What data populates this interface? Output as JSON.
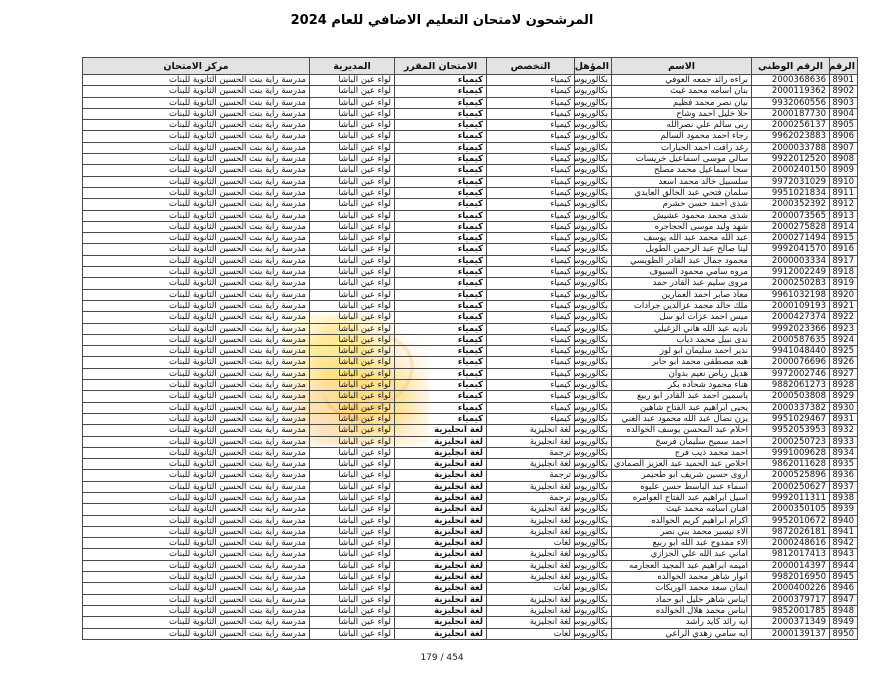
{
  "page": {
    "title": "المرشحون لامتحان التعليم الاضافي للعام 2024",
    "footer_page_indicator": "179 / 454"
  },
  "colors": {
    "header_bg": "#e3e3e3",
    "border": "#4a4a4a",
    "watermark_yellow": "#ffd84a",
    "watermark_orange": "#f59a23"
  },
  "table": {
    "headers": [
      "الرقم",
      "الرقم الوطني",
      "الاسم",
      "المؤهل",
      "التخصص",
      "الامتحان المقرر",
      "المديرية",
      "مركز الامتحان"
    ],
    "rows": [
      {
        "seq": "8901",
        "national_id": "2000368636",
        "name": "براءه رائد جمعه العوفي",
        "qualification": "بكالوريوس",
        "specialization": "كيمياء",
        "exam": "كيمياء",
        "directorate": "لواء عين الباشا",
        "center": "مدرسة راية بنت الحسين الثانوية للبنات"
      },
      {
        "seq": "8902",
        "national_id": "2000119362",
        "name": "بنان اسامه محمد غيث",
        "qualification": "بكالوريوس",
        "specialization": "كيمياء",
        "exam": "كيمياء",
        "directorate": "لواء عين الباشا",
        "center": "مدرسة راية بنت الحسين الثانوية للبنات"
      },
      {
        "seq": "8903",
        "national_id": "9932060556",
        "name": "بيان نصر محمد فظيم",
        "qualification": "بكالوريوس",
        "specialization": "كيمياء",
        "exam": "كيمياء",
        "directorate": "لواء عين الباشا",
        "center": "مدرسة راية بنت الحسين الثانوية للبنات"
      },
      {
        "seq": "8904",
        "national_id": "2000187730",
        "name": "حلا خليل احمد وشاح",
        "qualification": "بكالوريوس",
        "specialization": "كيمياء",
        "exam": "كيمياء",
        "directorate": "لواء عين الباشا",
        "center": "مدرسة راية بنت الحسين الثانوية للبنات"
      },
      {
        "seq": "8905",
        "national_id": "2000256137",
        "name": "ربى سالم علي نصرالله",
        "qualification": "بكالوريوس",
        "specialization": "كيمياء",
        "exam": "كيمياء",
        "directorate": "لواء عين الباشا",
        "center": "مدرسة راية بنت الحسين الثانوية للبنات"
      },
      {
        "seq": "8906",
        "national_id": "9962023883",
        "name": "رجاء احمد محمود السالم",
        "qualification": "بكالوريوس",
        "specialization": "كيمياء",
        "exam": "كيمياء",
        "directorate": "لواء عين الباشا",
        "center": "مدرسة راية بنت الحسين الثانوية للبنات"
      },
      {
        "seq": "8907",
        "national_id": "2000033788",
        "name": "رغد رافت احمد الجبارات",
        "qualification": "بكالوريوس",
        "specialization": "كيمياء",
        "exam": "كيمياء",
        "directorate": "لواء عين الباشا",
        "center": "مدرسة راية بنت الحسين الثانوية للبنات"
      },
      {
        "seq": "8908",
        "national_id": "9922012520",
        "name": "سالي موسى اسماعيل خريسات",
        "qualification": "بكالوريوس",
        "specialization": "كيمياء",
        "exam": "كيمياء",
        "directorate": "لواء عين الباشا",
        "center": "مدرسة راية بنت الحسين الثانوية للبنات"
      },
      {
        "seq": "8909",
        "national_id": "2000240150",
        "name": "سجا اسماعيل محمد مصلح",
        "qualification": "بكالوريوس",
        "specialization": "كيمياء",
        "exam": "كيمياء",
        "directorate": "لواء عين الباشا",
        "center": "مدرسة راية بنت الحسين الثانوية للبنات"
      },
      {
        "seq": "8910",
        "national_id": "9972031029",
        "name": "سلسبيل خالد محمد اسعد",
        "qualification": "بكالوريوس",
        "specialization": "كيمياء",
        "exam": "كيمياء",
        "directorate": "لواء عين الباشا",
        "center": "مدرسة راية بنت الحسين الثانوية للبنات"
      },
      {
        "seq": "8911",
        "national_id": "9951021834",
        "name": "سلمان فتحي عبد الخالق العايدي",
        "qualification": "بكالوريوس",
        "specialization": "كيمياء",
        "exam": "كيمياء",
        "directorate": "لواء عين الباشا",
        "center": "مدرسة راية بنت الحسين الثانوية للبنات"
      },
      {
        "seq": "8912",
        "national_id": "2000352392",
        "name": "شذى احمد حسن خشرم",
        "qualification": "بكالوريوس",
        "specialization": "كيمياء",
        "exam": "كيمياء",
        "directorate": "لواء عين الباشا",
        "center": "مدرسة راية بنت الحسين الثانوية للبنات"
      },
      {
        "seq": "8913",
        "national_id": "2000073565",
        "name": "شذى محمد محمود عشيش",
        "qualification": "بكالوريوس",
        "specialization": "كيمياء",
        "exam": "كيمياء",
        "directorate": "لواء عين الباشا",
        "center": "مدرسة راية بنت الحسين الثانوية للبنات"
      },
      {
        "seq": "8914",
        "national_id": "2000275828",
        "name": "شهد وليد موسى الحجاجره",
        "qualification": "بكالوريوس",
        "specialization": "كيمياء",
        "exam": "كيمياء",
        "directorate": "لواء عين الباشا",
        "center": "مدرسة راية بنت الحسين الثانوية للبنات"
      },
      {
        "seq": "8915",
        "national_id": "2000271494",
        "name": "عبد الله محمد عبد الله يوسف",
        "qualification": "بكالوريوس",
        "specialization": "كيمياء",
        "exam": "كيمياء",
        "directorate": "لواء عين الباشا",
        "center": "مدرسة راية بنت الحسين الثانوية للبنات"
      },
      {
        "seq": "8916",
        "national_id": "9992041570",
        "name": "لينا صالح عبد الرحمن الطويل",
        "qualification": "بكالوريوس",
        "specialization": "كيمياء",
        "exam": "كيمياء",
        "directorate": "لواء عين الباشا",
        "center": "مدرسة راية بنت الحسين الثانوية للبنات"
      },
      {
        "seq": "8917",
        "national_id": "2000003334",
        "name": "محمود جمال عبد القادر الطويسي",
        "qualification": "بكالوريوس",
        "specialization": "كيمياء",
        "exam": "كيمياء",
        "directorate": "لواء عين الباشا",
        "center": "مدرسة راية بنت الحسين الثانوية للبنات"
      },
      {
        "seq": "8918",
        "national_id": "9912002249",
        "name": "مروه سامي محمود السيوف",
        "qualification": "بكالوريوس",
        "specialization": "كيمياء",
        "exam": "كيمياء",
        "directorate": "لواء عين الباشا",
        "center": "مدرسة راية بنت الحسين الثانوية للبنات"
      },
      {
        "seq": "8919",
        "national_id": "2000250283",
        "name": "مروى سليم عبد القادر حمد",
        "qualification": "بكالوريوس",
        "specialization": "كيمياء",
        "exam": "كيمياء",
        "directorate": "لواء عين الباشا",
        "center": "مدرسة راية بنت الحسين الثانوية للبنات"
      },
      {
        "seq": "8920",
        "national_id": "9961032198",
        "name": "معاذ صابر احمد العمارين",
        "qualification": "بكالوريوس",
        "specialization": "كيمياء",
        "exam": "كيمياء",
        "directorate": "لواء عين الباشا",
        "center": "مدرسة راية بنت الحسين الثانوية للبنات"
      },
      {
        "seq": "8921",
        "national_id": "2000109193",
        "name": "ملك خالد محمد عزالدين جرادات",
        "qualification": "بكالوريوس",
        "specialization": "كيمياء",
        "exam": "كيمياء",
        "directorate": "لواء عين الباشا",
        "center": "مدرسة راية بنت الحسين الثانوية للبنات"
      },
      {
        "seq": "8922",
        "national_id": "2000427374",
        "name": "ميس احمد عزات ابو سل",
        "qualification": "بكالوريوس",
        "specialization": "كيمياء",
        "exam": "كيمياء",
        "directorate": "لواء عين الباشا",
        "center": "مدرسة راية بنت الحسين الثانوية للبنات"
      },
      {
        "seq": "8923",
        "national_id": "9992023366",
        "name": "ناديه عبد الله هاني الزغيلي",
        "qualification": "بكالوريوس",
        "specialization": "كيمياء",
        "exam": "كيمياء",
        "directorate": "لواء عين الباشا",
        "center": "مدرسة راية بنت الحسين الثانوية للبنات"
      },
      {
        "seq": "8924",
        "national_id": "2000587635",
        "name": "ندى نبيل محمد ذياب",
        "qualification": "بكالوريوس",
        "specialization": "كيمياء",
        "exam": "كيمياء",
        "directorate": "لواء عين الباشا",
        "center": "مدرسة راية بنت الحسين الثانوية للبنات"
      },
      {
        "seq": "8925",
        "national_id": "9941048440",
        "name": "نذير احمد سليمان ابو لوز",
        "qualification": "بكالوريوس",
        "specialization": "كيمياء",
        "exam": "كيمياء",
        "directorate": "لواء عين الباشا",
        "center": "مدرسة راية بنت الحسين الثانوية للبنات"
      },
      {
        "seq": "8926",
        "national_id": "2000076696",
        "name": "هبه مصطفى محمد ابو جابر",
        "qualification": "بكالوريوس",
        "specialization": "كيمياء",
        "exam": "كيمياء",
        "directorate": "لواء عين الباشا",
        "center": "مدرسة راية بنت الحسين الثانوية للبنات"
      },
      {
        "seq": "8927",
        "national_id": "9972002746",
        "name": "هديل رياض نعيم بدوان",
        "qualification": "بكالوريوس",
        "specialization": "كيمياء",
        "exam": "كيمياء",
        "directorate": "لواء عين الباشا",
        "center": "مدرسة راية بنت الحسين الثانوية للبنات"
      },
      {
        "seq": "8928",
        "national_id": "9882061273",
        "name": "هناء محمود شحاده بكر",
        "qualification": "بكالوريوس",
        "specialization": "كيمياء",
        "exam": "كيمياء",
        "directorate": "لواء عين الباشا",
        "center": "مدرسة راية بنت الحسين الثانوية للبنات"
      },
      {
        "seq": "8929",
        "national_id": "2000503808",
        "name": "ياسمين احمد عبد القادر ابو ربيع",
        "qualification": "بكالوريوس",
        "specialization": "كيمياء",
        "exam": "كيمياء",
        "directorate": "لواء عين الباشا",
        "center": "مدرسة راية بنت الحسين الثانوية للبنات"
      },
      {
        "seq": "8930",
        "national_id": "2000337382",
        "name": "يحيى ابراهيم عبد الفتاح شاهين",
        "qualification": "بكالوريوس",
        "specialization": "كيمياء",
        "exam": "كيمياء",
        "directorate": "لواء عين الباشا",
        "center": "مدرسة راية بنت الحسين الثانوية للبنات"
      },
      {
        "seq": "8931",
        "national_id": "9951029467",
        "name": "يزن نضال عبد الله محمود عبد الغني",
        "qualification": "بكالوريوس",
        "specialization": "كيمياء",
        "exam": "كيمياء",
        "directorate": "لواء عين الباشا",
        "center": "مدرسة راية بنت الحسين الثانوية للبنات"
      },
      {
        "seq": "8932",
        "national_id": "9952053953",
        "name": "احلام عبد المحسن يوسف الخوالده",
        "qualification": "بكالوريوس",
        "specialization": "لغة انجليزية",
        "exam": "لغة انجليزية",
        "directorate": "لواء عين الباشا",
        "center": "مدرسة راية بنت الحسين الثانوية للبنات"
      },
      {
        "seq": "8933",
        "national_id": "2000250723",
        "name": "احمد سميح سليمان فرسخ",
        "qualification": "بكالوريوس",
        "specialization": "لغة انجليزية",
        "exam": "لغة انجليزية",
        "directorate": "لواء عين الباشا",
        "center": "مدرسة راية بنت الحسين الثانوية للبنات"
      },
      {
        "seq": "8934",
        "national_id": "9991009628",
        "name": "احمد محمد ذيب فرج",
        "qualification": "بكالوريوس",
        "specialization": "ترجمة",
        "exam": "لغة انجليزية",
        "directorate": "لواء عين الباشا",
        "center": "مدرسة راية بنت الحسين الثانوية للبنات"
      },
      {
        "seq": "8935",
        "national_id": "9862011628",
        "name": "اخلاص عبد الحميد عبد العزيز الصمادي",
        "qualification": "بكالوريوس",
        "specialization": "لغة انجليزية",
        "exam": "لغة انجليزية",
        "directorate": "لواء عين الباشا",
        "center": "مدرسة راية بنت الحسين الثانوية للبنات"
      },
      {
        "seq": "8936",
        "national_id": "2000525896",
        "name": "اروى حسين شريف ابو طحيمر",
        "qualification": "بكالوريوس",
        "specialization": "ترجمة",
        "exam": "لغة انجليزية",
        "directorate": "لواء عين الباشا",
        "center": "مدرسة راية بنت الحسين الثانوية للبنات"
      },
      {
        "seq": "8937",
        "national_id": "2000250627",
        "name": "اسماء عبد الباسط حسن عليوه",
        "qualification": "بكالوريوس",
        "specialization": "لغة انجليزية",
        "exam": "لغة انجليزية",
        "directorate": "لواء عين الباشا",
        "center": "مدرسة راية بنت الحسين الثانوية للبنات"
      },
      {
        "seq": "8938",
        "national_id": "9992011311",
        "name": "اسيل ابراهيم عبد الفتاح العوامره",
        "qualification": "بكالوريوس",
        "specialization": "ترجمة",
        "exam": "لغة انجليزية",
        "directorate": "لواء عين الباشا",
        "center": "مدرسة راية بنت الحسين الثانوية للبنات"
      },
      {
        "seq": "8939",
        "national_id": "2000350105",
        "name": "افنان اسامه محمد غيث",
        "qualification": "بكالوريوس",
        "specialization": "لغة انجليزية",
        "exam": "لغة انجليزية",
        "directorate": "لواء عين الباشا",
        "center": "مدرسة راية بنت الحسين الثانوية للبنات"
      },
      {
        "seq": "8940",
        "national_id": "9952010672",
        "name": "اكرام ابراهيم كريم الخوالده",
        "qualification": "بكالوريوس",
        "specialization": "لغة انجليزية",
        "exam": "لغة انجليزية",
        "directorate": "لواء عين الباشا",
        "center": "مدرسة راية بنت الحسين الثانوية للبنات"
      },
      {
        "seq": "8941",
        "national_id": "9872026181",
        "name": "الاء تيسير محمد بني نصر",
        "qualification": "بكالوريوس",
        "specialization": "لغة انجليزية",
        "exam": "لغة انجليزية",
        "directorate": "لواء عين الباشا",
        "center": "مدرسة راية بنت الحسين الثانوية للبنات"
      },
      {
        "seq": "8942",
        "national_id": "2000248616",
        "name": "الاء ممدوح عبد الله ابو ربيع",
        "qualification": "بكالوريوس",
        "specialization": "لغات",
        "exam": "لغة انجليزية",
        "directorate": "لواء عين الباشا",
        "center": "مدرسة راية بنت الحسين الثانوية للبنات"
      },
      {
        "seq": "8943",
        "national_id": "9812017413",
        "name": "اماني عبد الله علي الجزازي",
        "qualification": "بكالوريوس",
        "specialization": "لغة انجليزية",
        "exam": "لغة انجليزية",
        "directorate": "لواء عين الباشا",
        "center": "مدرسة راية بنت الحسين الثانوية للبنات"
      },
      {
        "seq": "8944",
        "national_id": "2000014397",
        "name": "اميمه ابراهيم عبد المجيد العجارمه",
        "qualification": "بكالوريوس",
        "specialization": "لغة انجليزية",
        "exam": "لغة انجليزية",
        "directorate": "لواء عين الباشا",
        "center": "مدرسة راية بنت الحسين الثانوية للبنات"
      },
      {
        "seq": "8945",
        "national_id": "9982016950",
        "name": "انوار شاهر محمد الخوالده",
        "qualification": "بكالوريوس",
        "specialization": "لغة انجليزية",
        "exam": "لغة انجليزية",
        "directorate": "لواء عين الباشا",
        "center": "مدرسة راية بنت الحسين الثانوية للبنات"
      },
      {
        "seq": "8946",
        "national_id": "2000400226",
        "name": "ايمان سعد محمد الوريكات",
        "qualification": "بكالوريوس",
        "specialization": "لغات",
        "exam": "لغة انجليزية",
        "directorate": "لواء عين الباشا",
        "center": "مدرسة راية بنت الحسين الثانوية للبنات"
      },
      {
        "seq": "8947",
        "national_id": "2000379717",
        "name": "ايناس شاهر خليل ابو حماد",
        "qualification": "بكالوريوس",
        "specialization": "لغة انجليزية",
        "exam": "لغة انجليزية",
        "directorate": "لواء عين الباشا",
        "center": "مدرسة راية بنت الحسين الثانوية للبنات"
      },
      {
        "seq": "8948",
        "national_id": "9852001785",
        "name": "ايناس محمد هلال الخوالده",
        "qualification": "بكالوريوس",
        "specialization": "لغة انجليزية",
        "exam": "لغة انجليزية",
        "directorate": "لواء عين الباشا",
        "center": "مدرسة راية بنت الحسين الثانوية للبنات"
      },
      {
        "seq": "8949",
        "national_id": "2000371349",
        "name": "ايه رائد كايد راشد",
        "qualification": "بكالوريوس",
        "specialization": "لغة انجليزية",
        "exam": "لغة انجليزية",
        "directorate": "لواء عين الباشا",
        "center": "مدرسة راية بنت الحسين الثانوية للبنات"
      },
      {
        "seq": "8950",
        "national_id": "2000139137",
        "name": "ايه سامي زهدي الراعي",
        "qualification": "بكالوريوس",
        "specialization": "لغات",
        "exam": "لغة انجليزية",
        "directorate": "لواء عين الباشا",
        "center": "مدرسة راية بنت الحسين الثانوية للبنات"
      }
    ]
  }
}
